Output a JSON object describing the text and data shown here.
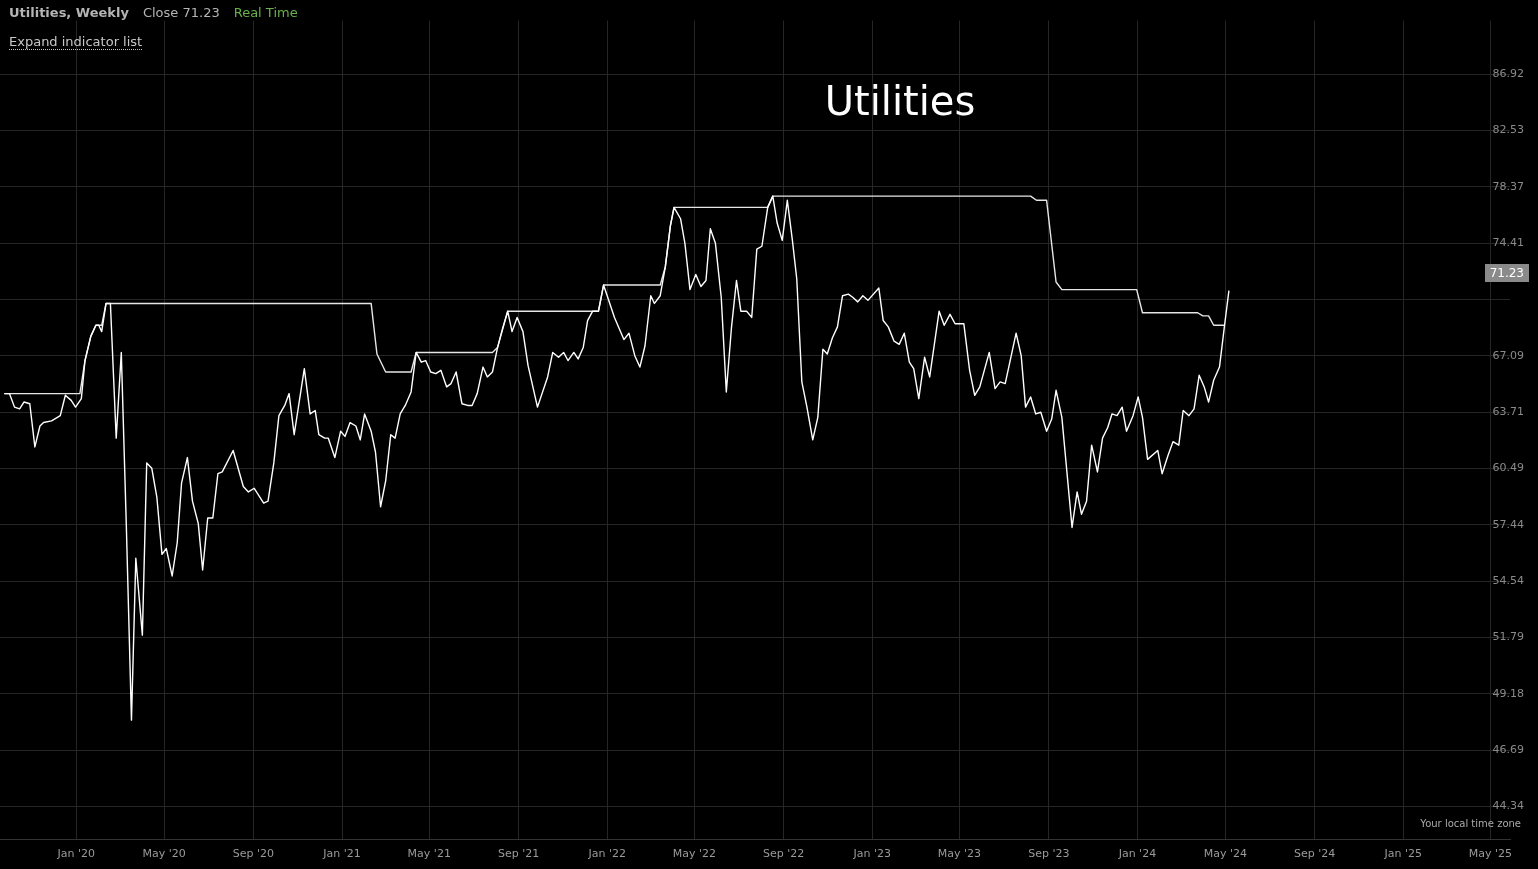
{
  "chart_data": {
    "type": "line",
    "title": "Utilities",
    "subtitle": "Utilities, Weekly",
    "annotations": [
      "Close 71.23",
      "Real Time",
      "Expand indicator list",
      "Your local time zone",
      "71.23"
    ],
    "xlim": [
      "2019-09-18",
      "2025-05-28"
    ],
    "xticks": [
      {
        "value": "2020-01-01",
        "label": "Jan '20"
      },
      {
        "value": "2020-05-01",
        "label": "May '20"
      },
      {
        "value": "2020-09-01",
        "label": "Sep '20"
      },
      {
        "value": "2021-01-01",
        "label": "Jan '21"
      },
      {
        "value": "2021-05-01",
        "label": "May '21"
      },
      {
        "value": "2021-09-01",
        "label": "Sep '21"
      },
      {
        "value": "2022-01-01",
        "label": "Jan '22"
      },
      {
        "value": "2022-05-01",
        "label": "May '22"
      },
      {
        "value": "2022-09-01",
        "label": "Sep '22"
      },
      {
        "value": "2023-01-01",
        "label": "Jan '23"
      },
      {
        "value": "2023-05-01",
        "label": "May '23"
      },
      {
        "value": "2023-09-01",
        "label": "Sep '23"
      },
      {
        "value": "2024-01-01",
        "label": "Jan '24"
      },
      {
        "value": "2024-05-01",
        "label": "May '24"
      },
      {
        "value": "2024-09-01",
        "label": "Sep '24"
      },
      {
        "value": "2025-01-01",
        "label": "Jan '25"
      },
      {
        "value": "2025-05-01",
        "label": "May '25"
      }
    ],
    "ylim": [
      43.0,
      91.3
    ],
    "log": true,
    "yticks": [
      44.34,
      46.69,
      49.18,
      51.79,
      54.54,
      57.44,
      60.49,
      63.71,
      67.09,
      {
        "value": 70.66,
        "label": null
      },
      74.41,
      78.37,
      82.53,
      86.92
    ],
    "grid": true,
    "series": [
      {
        "color": "#ffffff",
        "x": [
          "2019-09-24",
          "2019-10-01",
          "2019-10-08",
          "2019-10-15",
          "2019-10-21",
          "2019-10-29",
          "2019-11-05",
          "2019-11-12",
          "2019-11-17",
          "2019-11-28",
          "2019-12-10",
          "2019-12-17",
          "2019-12-25",
          "2019-12-31",
          "2020-01-08",
          "2020-01-13",
          "2020-01-21",
          "2020-01-28",
          "2020-02-01",
          "2020-02-05",
          "2020-02-11",
          "2020-02-17",
          "2020-02-25",
          "2020-03-03",
          "2020-03-10",
          "2020-03-17",
          "2020-03-23",
          "2020-04-01",
          "2020-04-07",
          "2020-04-14",
          "2020-04-21",
          "2020-04-28",
          "2020-05-04",
          "2020-05-12",
          "2020-05-19",
          "2020-05-25",
          "2020-06-02",
          "2020-06-09",
          "2020-06-17",
          "2020-06-23",
          "2020-06-30",
          "2020-07-07",
          "2020-07-14",
          "2020-07-20",
          "2020-08-04",
          "2020-08-18",
          "2020-08-25",
          "2020-09-02",
          "2020-09-15",
          "2020-09-21",
          "2020-09-29",
          "2020-10-06",
          "2020-10-14",
          "2020-10-20",
          "2020-10-27",
          "2020-11-10",
          "2020-11-18",
          "2020-11-25",
          "2020-11-30",
          "2020-12-08",
          "2020-12-13",
          "2020-12-22",
          "2020-12-30",
          "2021-01-05",
          "2021-01-12",
          "2021-01-20",
          "2021-01-26",
          "2021-02-01",
          "2021-02-10",
          "2021-02-16",
          "2021-02-23",
          "2021-03-02",
          "2021-03-09",
          "2021-03-15",
          "2021-03-22",
          "2021-03-29",
          "2021-04-06",
          "2021-04-13",
          "2021-04-20",
          "2021-04-26",
          "2021-05-03",
          "2021-05-10",
          "2021-05-17",
          "2021-05-25",
          "2021-05-31",
          "2021-06-07",
          "2021-06-15",
          "2021-06-23",
          "2021-06-29",
          "2021-07-06",
          "2021-07-14",
          "2021-07-20",
          "2021-07-27",
          "2021-08-03",
          "2021-08-10",
          "2021-08-17",
          "2021-08-23",
          "2021-08-30",
          "2021-09-07",
          "2021-09-14",
          "2021-09-27",
          "2021-10-11",
          "2021-10-18",
          "2021-10-26",
          "2021-11-02",
          "2021-11-08",
          "2021-11-16",
          "2021-11-22",
          "2021-11-29",
          "2021-12-05",
          "2021-12-12",
          "2021-12-20",
          "2021-12-27",
          "2022-01-11",
          "2022-01-24",
          "2022-01-31",
          "2022-02-08",
          "2022-02-15",
          "2022-02-22",
          "2022-03-02",
          "2022-03-07",
          "2022-03-15",
          "2022-03-22",
          "2022-03-29",
          "2022-04-03",
          "2022-04-12",
          "2022-04-18",
          "2022-04-25",
          "2022-05-03",
          "2022-05-10",
          "2022-05-17",
          "2022-05-23",
          "2022-05-30",
          "2022-06-07",
          "2022-06-14",
          "2022-06-21",
          "2022-06-28",
          "2022-07-04",
          "2022-07-12",
          "2022-07-19",
          "2022-07-26",
          "2022-08-02",
          "2022-08-10",
          "2022-08-17",
          "2022-08-23",
          "2022-08-30",
          "2022-09-06",
          "2022-09-13",
          "2022-09-19",
          "2022-09-26",
          "2022-10-03",
          "2022-10-11",
          "2022-10-18",
          "2022-10-25",
          "2022-10-31",
          "2022-11-07",
          "2022-11-14",
          "2022-11-21",
          "2022-11-29",
          "2022-12-05",
          "2022-12-12",
          "2022-12-19",
          "2022-12-26",
          "2023-01-10",
          "2023-01-16",
          "2023-01-23",
          "2023-01-31",
          "2023-02-07",
          "2023-02-14",
          "2023-02-21",
          "2023-02-27",
          "2023-03-06",
          "2023-03-14",
          "2023-03-21",
          "2023-04-03",
          "2023-04-10",
          "2023-04-18",
          "2023-04-25",
          "2023-05-07",
          "2023-05-15",
          "2023-05-22",
          "2023-05-29",
          "2023-06-11",
          "2023-06-19",
          "2023-06-26",
          "2023-07-03",
          "2023-07-18",
          "2023-07-25",
          "2023-07-31",
          "2023-08-07",
          "2023-08-14",
          "2023-08-21",
          "2023-08-29",
          "2023-09-05",
          "2023-09-11",
          "2023-09-19",
          "2023-10-03",
          "2023-10-10",
          "2023-10-16",
          "2023-10-23",
          "2023-10-30",
          "2023-11-07",
          "2023-11-14",
          "2023-11-21",
          "2023-11-27",
          "2023-12-04",
          "2023-12-11",
          "2023-12-17",
          "2023-12-26",
          "2024-01-02",
          "2024-01-08",
          "2024-01-15",
          "2024-01-29",
          "2024-02-04",
          "2024-02-12",
          "2024-02-19",
          "2024-02-27",
          "2024-03-04",
          "2024-03-12",
          "2024-03-19",
          "2024-03-26",
          "2024-04-02",
          "2024-04-08",
          "2024-04-15",
          "2024-04-23",
          "2024-04-30",
          "2024-05-06"
        ],
        "values": [
          64.8,
          64.8,
          64.0,
          63.9,
          64.3,
          64.2,
          61.7,
          62.9,
          63.1,
          63.2,
          63.5,
          64.7,
          64.4,
          64.0,
          64.5,
          66.8,
          68.3,
          69.0,
          69.0,
          68.6,
          70.4,
          70.4,
          62.2,
          67.3,
          57.3,
          48.0,
          55.7,
          51.9,
          60.8,
          60.5,
          58.9,
          55.9,
          56.2,
          54.8,
          56.5,
          59.7,
          61.1,
          58.7,
          57.5,
          55.1,
          57.8,
          57.8,
          60.2,
          60.3,
          61.5,
          59.5,
          59.2,
          59.4,
          58.6,
          58.7,
          60.8,
          63.5,
          64.1,
          64.8,
          62.4,
          66.3,
          63.6,
          63.8,
          62.4,
          62.2,
          62.2,
          61.1,
          62.6,
          62.3,
          63.1,
          62.9,
          62.1,
          63.6,
          62.6,
          61.4,
          58.4,
          59.8,
          62.4,
          62.2,
          63.6,
          64.1,
          64.9,
          67.3,
          66.7,
          66.8,
          66.1,
          66.0,
          66.2,
          65.2,
          65.4,
          66.1,
          64.2,
          64.1,
          64.1,
          64.8,
          66.4,
          65.8,
          66.1,
          67.6,
          68.8,
          69.9,
          68.6,
          69.5,
          68.6,
          66.5,
          64.0,
          65.8,
          67.3,
          67.0,
          67.3,
          66.8,
          67.3,
          66.9,
          67.6,
          69.3,
          69.9,
          69.9,
          71.6,
          69.5,
          68.1,
          68.5,
          67.1,
          66.4,
          67.7,
          70.9,
          70.4,
          70.9,
          72.8,
          75.6,
          76.9,
          76.1,
          74.4,
          71.3,
          72.3,
          71.5,
          71.9,
          75.4,
          74.4,
          70.8,
          64.9,
          68.8,
          71.9,
          69.9,
          69.9,
          69.5,
          74.0,
          74.2,
          76.9,
          77.7,
          75.8,
          74.6,
          77.4,
          74.6,
          72.0,
          65.5,
          64.0,
          62.1,
          63.4,
          67.5,
          67.2,
          68.2,
          68.9,
          70.9,
          71.0,
          70.8,
          70.5,
          70.9,
          70.6,
          71.4,
          69.3,
          68.9,
          68.0,
          67.8,
          68.5,
          66.7,
          66.3,
          64.5,
          67.0,
          65.8,
          69.9,
          69.0,
          69.7,
          69.1,
          69.1,
          66.2,
          64.7,
          65.2,
          67.3,
          65.1,
          65.5,
          65.4,
          68.5,
          67.1,
          64.0,
          64.6,
          63.6,
          63.7,
          62.6,
          63.3,
          65.0,
          63.4,
          57.3,
          59.2,
          58.0,
          58.7,
          61.8,
          60.3,
          62.2,
          62.8,
          63.6,
          63.5,
          64.0,
          62.6,
          63.5,
          64.6,
          63.4,
          61.0,
          61.5,
          60.2,
          61.2,
          62.0,
          61.8,
          63.8,
          63.5,
          63.9,
          65.9,
          65.2,
          64.3,
          65.6,
          66.4,
          69.0,
          71.23
        ]
      },
      {
        "color": "#e6e6e6",
        "x": [
          "2019-09-24",
          "2020-01-06",
          "2020-01-13",
          "2020-01-21",
          "2020-01-28",
          "2020-02-05",
          "2020-02-11",
          "2021-02-10",
          "2021-02-18",
          "2021-03-02",
          "2021-04-06",
          "2021-04-13",
          "2021-07-27",
          "2021-08-03",
          "2021-08-17",
          "2021-12-20",
          "2021-12-27",
          "2022-03-15",
          "2022-03-22",
          "2022-03-29",
          "2022-04-03",
          "2022-08-10",
          "2022-08-17",
          "2023-08-07",
          "2023-08-15",
          "2023-08-29",
          "2023-09-11",
          "2023-09-19",
          "2023-12-31",
          "2024-01-08",
          "2024-03-24",
          "2024-03-31",
          "2024-04-08",
          "2024-04-15",
          "2024-04-30"
        ],
        "values": [
          64.8,
          64.8,
          66.8,
          68.3,
          69.0,
          69.0,
          70.4,
          70.4,
          67.2,
          66.1,
          66.1,
          67.3,
          67.3,
          67.6,
          69.9,
          69.9,
          71.6,
          71.6,
          72.8,
          75.6,
          76.9,
          76.9,
          77.7,
          77.7,
          77.4,
          77.4,
          71.8,
          71.3,
          71.3,
          69.8,
          69.8,
          69.6,
          69.6,
          69.0,
          69.0
        ]
      }
    ]
  }
}
